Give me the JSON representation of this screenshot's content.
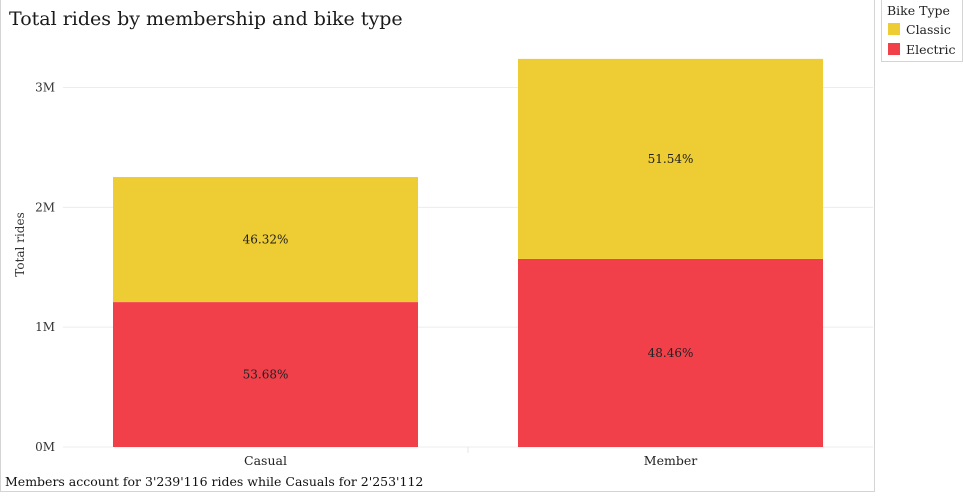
{
  "title": "Total rides by membership and bike type",
  "footnote": "Members account for 3'239'116 rides while Casuals for 2'253'112",
  "legend": {
    "title": "Bike Type",
    "items": [
      {
        "label": "Classic",
        "color": "#eecc33"
      },
      {
        "label": "Electric",
        "color": "#f2404b"
      }
    ]
  },
  "chart_data": {
    "type": "bar",
    "stacked": true,
    "title": "Total rides by membership and bike type",
    "xlabel": "",
    "ylabel": "Total rides",
    "categories": [
      "Casual",
      "Member"
    ],
    "series": [
      {
        "name": "Electric",
        "color": "#f2404b",
        "values": [
          1209470,
          1569676
        ],
        "labels": [
          "53.68%",
          "48.46%"
        ]
      },
      {
        "name": "Classic",
        "color": "#eecc33",
        "values": [
          1043642,
          1669440
        ],
        "labels": [
          "46.32%",
          "51.54%"
        ]
      }
    ],
    "yticks": [
      0,
      1000000,
      2000000,
      3000000
    ],
    "ytick_labels": [
      "0M",
      "1M",
      "2M",
      "3M"
    ],
    "ylim": [
      0,
      3380000
    ],
    "grid": true,
    "legend_position": "top-right"
  }
}
